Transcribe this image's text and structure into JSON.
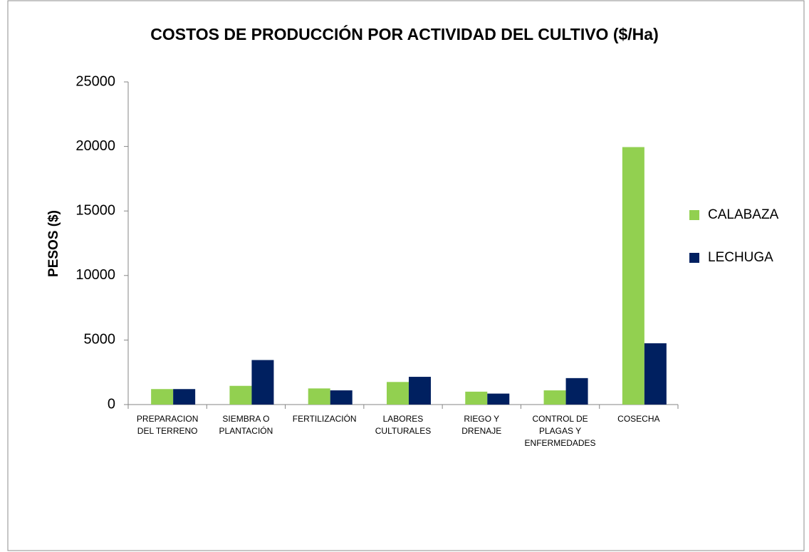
{
  "chart_data": {
    "type": "bar",
    "title": "COSTOS DE PRODUCCIÓN POR ACTIVIDAD DEL CULTIVO ($/Ha)",
    "y_label": "PESOS ($)",
    "categories": [
      "PREPARACION DEL TERRENO",
      "SIEMBRA O PLANTACIÓN",
      "FERTILIZACIÓN",
      "LABORES CULTURALES",
      "RIEGO Y DRENAJE",
      "CONTROL DE PLAGAS Y ENFERMEDADES",
      "COSECHA"
    ],
    "series": [
      {
        "name": "CALABAZA",
        "color": "#92d050",
        "values": [
          1200,
          1450,
          1250,
          1750,
          1000,
          1100,
          19950
        ]
      },
      {
        "name": "LECHUGA",
        "color": "#002060",
        "values": [
          1200,
          3450,
          1100,
          2150,
          850,
          2050,
          4750
        ]
      }
    ],
    "ylim": [
      0,
      25000
    ],
    "yticks": [
      0,
      5000,
      10000,
      15000,
      20000,
      25000
    ],
    "grid": false,
    "legend": "right"
  }
}
